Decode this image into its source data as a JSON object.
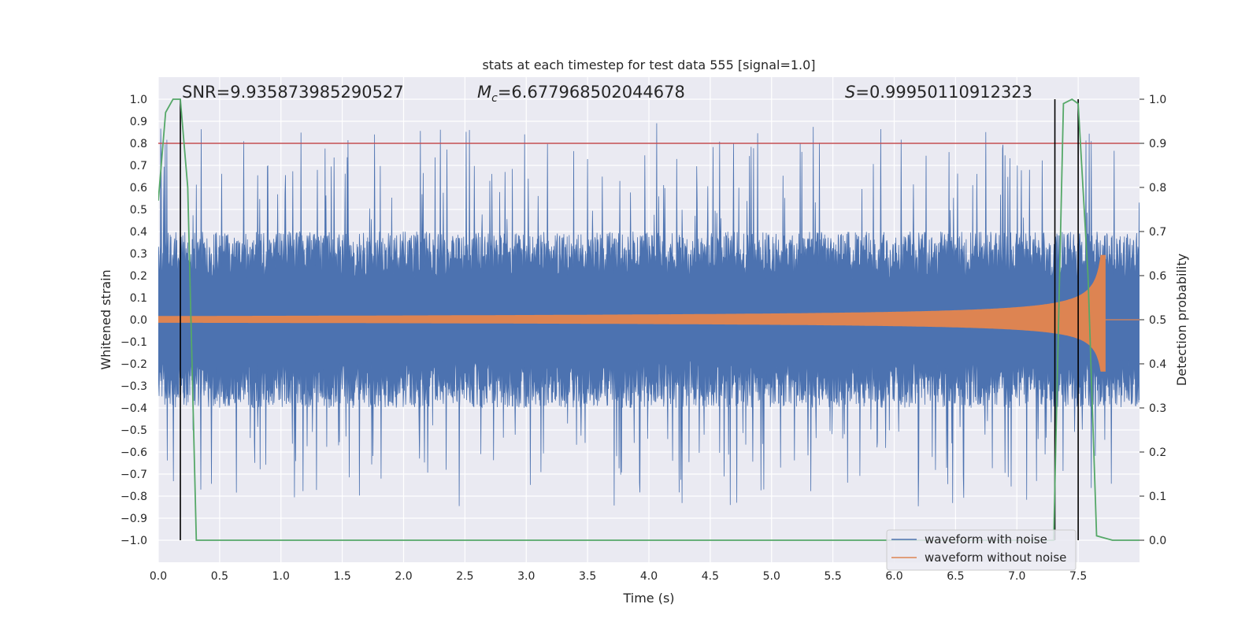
{
  "chart_data": {
    "type": "line",
    "title": "stats at each timestep for test data 555 [signal=1.0]",
    "xlabel": "Time (s)",
    "ylabel": "Whitened strain",
    "ylabel_right": "Detection probability",
    "xlim": [
      0.0,
      8.0
    ],
    "ylim": [
      -1.1,
      1.1
    ],
    "ylim_right": [
      -0.05,
      1.05
    ],
    "x_ticks": [
      "0.0",
      "0.5",
      "1.0",
      "1.5",
      "2.0",
      "2.5",
      "3.0",
      "3.5",
      "4.0",
      "4.5",
      "5.0",
      "5.5",
      "6.0",
      "6.5",
      "7.0",
      "7.5"
    ],
    "y_ticks": [
      "1.0",
      "0.9",
      "0.8",
      "0.7",
      "0.6",
      "0.5",
      "0.4",
      "0.3",
      "0.2",
      "0.1",
      "0.0",
      "−0.1",
      "−0.2",
      "−0.3",
      "−0.4",
      "−0.5",
      "−0.6",
      "−0.7",
      "−0.8",
      "−0.9",
      "−1.0"
    ],
    "y_right_ticks": [
      "1.0",
      "0.9",
      "0.8",
      "0.7",
      "0.6",
      "0.5",
      "0.4",
      "0.3",
      "0.2",
      "0.1",
      "0.0"
    ],
    "grid": true,
    "legend_position": "lower-right",
    "annotations": {
      "snr": "SNR=9.935873985290527",
      "mc_symbol": "M",
      "mc_sub": "c",
      "mc_value": "=6.677968502044678",
      "s_symbol": "S",
      "s_value": "=0.99950110912323"
    },
    "threshold": 0.8,
    "vertical_lines_x": [
      0.18,
      7.31,
      7.5
    ],
    "series": [
      {
        "name": "waveform with noise",
        "color": "#4c72b0",
        "description": "dense noisy whitened strain, mostly within ±0.4, peaks near ±1.0",
        "x_range": [
          0.0,
          8.0
        ],
        "typical_amplitude": 0.4,
        "peak_max": 1.0,
        "peak_min": -1.0
      },
      {
        "name": "waveform without noise",
        "color": "#dd8452",
        "chirp_start": 0.0,
        "chirp_end": 7.72,
        "start_amplitude": 0.015,
        "peak_amplitude": 0.3
      },
      {
        "name": "detection probability",
        "color": "#55a868",
        "axis": "right",
        "x": [
          0.0,
          0.06,
          0.12,
          0.18,
          0.24,
          0.31,
          0.33,
          7.3,
          7.38,
          7.45,
          7.5,
          7.58,
          7.65,
          7.78,
          8.0
        ],
        "y": [
          0.77,
          0.97,
          1.0,
          1.0,
          0.8,
          0.0,
          0.0,
          0.0,
          0.99,
          1.0,
          0.99,
          0.6,
          0.01,
          0.0,
          0.0
        ]
      }
    ]
  }
}
